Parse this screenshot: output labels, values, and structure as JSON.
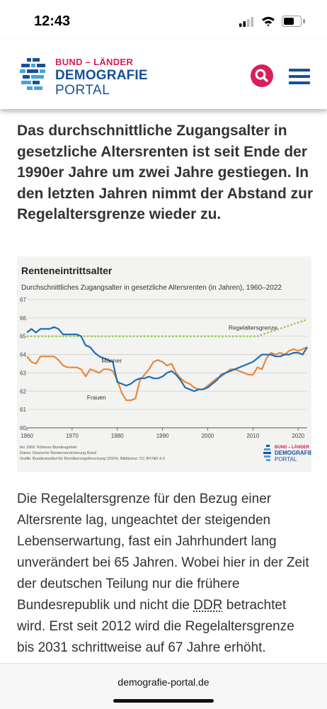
{
  "status_bar": {
    "time": "12:43"
  },
  "header": {
    "logo_line1": "BUND – LÄNDER",
    "logo_line2": "DEMOGRAFIE",
    "logo_line3": "PORTAL",
    "search_icon": "search-icon",
    "menu_icon": "hamburger-menu-icon"
  },
  "article": {
    "lead": "Das durchschnittliche Zugangsalter in gesetzliche Altersrenten ist seit Ende der 1990er Jahre um zwei Jahre gestiegen. In den letzten Jahren nimmt der Abstand zur Regelaltersgrenze wieder zu.",
    "body_part1": "Die Regelaltersgrenze für den Bezug einer Altersrente lag, ungeachtet der steigenden Lebenserwartung, fast ein Jahrhundert lang unverändert bei 65 Jahren. Wobei hier in der Zeit der deutschen Teilung nur die frühere Bundesrepublik und nicht die ",
    "body_ddr": "DDR",
    "body_part2": " betrachtet wird. Erst seit 2012 wird die Regelaltersgrenze bis 2031 schrittweise auf 67 Jahre erhöht."
  },
  "chart_notes": {
    "line1": "bis 1992: früheres Bundesgebiet",
    "line2": "Daten: Deutsche Rentenversicherung Bund",
    "line3": "Grafik: Bundesinstitut für Bevölkerungsforschung (2024), Bildlizenz: CC BY-ND 4.0"
  },
  "chart_logo": {
    "line1": "BUND – LÄNDER",
    "line2": "DEMOGRAFIE",
    "line3": "PORTAL"
  },
  "footer": {
    "url": "demografie-portal.de"
  },
  "colors": {
    "men": "#1f6fb2",
    "women": "#e8883a",
    "regelaltersgrenze": "#8cc63f",
    "brand_blue": "#16509c",
    "brand_red": "#d71f5a",
    "chart_background": "#f3f3f1"
  },
  "chart_data": {
    "type": "line",
    "title": "Renteneintrittsalter",
    "subtitle": "Durchschnittliches Zugangsalter in gesetzliche Altersrenten (in Jahren), 1960–2022",
    "xlabel": "",
    "ylabel": "",
    "xlim": [
      1960,
      2022
    ],
    "ylim": [
      60,
      67
    ],
    "x_ticks": [
      1960,
      1970,
      1980,
      1990,
      2000,
      2010,
      2020
    ],
    "y_ticks": [
      60,
      61,
      62,
      63,
      64,
      65,
      66,
      67
    ],
    "grid": "horizontal",
    "series": [
      {
        "name": "Männer",
        "x": [
          1960,
          1961,
          1962,
          1963,
          1964,
          1965,
          1966,
          1967,
          1968,
          1969,
          1970,
          1971,
          1972,
          1973,
          1974,
          1975,
          1976,
          1977,
          1978,
          1979,
          1980,
          1981,
          1982,
          1983,
          1984,
          1985,
          1986,
          1987,
          1988,
          1989,
          1990,
          1991,
          1992,
          1993,
          1994,
          1995,
          1996,
          1997,
          1998,
          1999,
          2000,
          2001,
          2002,
          2003,
          2004,
          2005,
          2006,
          2007,
          2008,
          2009,
          2010,
          2011,
          2012,
          2013,
          2014,
          2015,
          2016,
          2017,
          2018,
          2019,
          2020,
          2021,
          2022
        ],
        "values": [
          65.2,
          65.4,
          65.2,
          65.4,
          65.4,
          65.4,
          65.5,
          65.4,
          65.1,
          65.1,
          65.1,
          65.1,
          65.0,
          64.5,
          64.4,
          64.1,
          63.9,
          63.8,
          63.7,
          63.6,
          62.5,
          62.4,
          62.3,
          62.4,
          62.6,
          62.7,
          62.7,
          62.8,
          62.7,
          62.7,
          62.8,
          63.0,
          63.1,
          62.9,
          62.6,
          62.2,
          62.1,
          62.0,
          62.1,
          62.1,
          62.2,
          62.4,
          62.6,
          62.9,
          63.0,
          63.1,
          63.2,
          63.3,
          63.4,
          63.5,
          63.6,
          63.8,
          64.0,
          64.0,
          64.0,
          63.9,
          63.9,
          64.0,
          64.0,
          64.1,
          64.1,
          64.0,
          64.4
        ]
      },
      {
        "name": "Frauen",
        "x": [
          1960,
          1961,
          1962,
          1963,
          1964,
          1965,
          1966,
          1967,
          1968,
          1969,
          1970,
          1971,
          1972,
          1973,
          1974,
          1975,
          1976,
          1977,
          1978,
          1979,
          1980,
          1981,
          1982,
          1983,
          1984,
          1985,
          1986,
          1987,
          1988,
          1989,
          1990,
          1991,
          1992,
          1993,
          1994,
          1995,
          1996,
          1997,
          1998,
          1999,
          2000,
          2001,
          2002,
          2003,
          2004,
          2005,
          2006,
          2007,
          2008,
          2009,
          2010,
          2011,
          2012,
          2013,
          2014,
          2015,
          2016,
          2017,
          2018,
          2019,
          2020,
          2021,
          2022
        ],
        "values": [
          63.9,
          63.6,
          63.5,
          63.9,
          63.9,
          63.9,
          63.9,
          63.7,
          63.4,
          63.3,
          63.3,
          63.3,
          63.2,
          62.8,
          63.2,
          63.1,
          63.0,
          63.2,
          63.2,
          63.1,
          62.6,
          61.9,
          61.5,
          61.5,
          61.6,
          62.6,
          62.9,
          63.2,
          63.6,
          63.7,
          63.6,
          63.4,
          63.5,
          63.0,
          62.7,
          62.5,
          62.4,
          62.2,
          62.1,
          62.1,
          62.3,
          62.5,
          62.7,
          62.8,
          63.0,
          63.2,
          63.2,
          63.1,
          63.0,
          62.9,
          62.9,
          63.3,
          63.2,
          63.8,
          64.1,
          64.0,
          64.1,
          64.0,
          64.2,
          64.3,
          64.2,
          64.3,
          64.4
        ]
      },
      {
        "name": "Regelaltersgrenze",
        "x": [
          1960,
          2011,
          2012,
          2013,
          2014,
          2015,
          2016,
          2017,
          2018,
          2019,
          2020,
          2021,
          2022
        ],
        "values": [
          65.0,
          65.0,
          65.08,
          65.17,
          65.25,
          65.33,
          65.42,
          65.5,
          65.58,
          65.67,
          65.75,
          65.83,
          65.92
        ],
        "dashed": true
      }
    ]
  }
}
